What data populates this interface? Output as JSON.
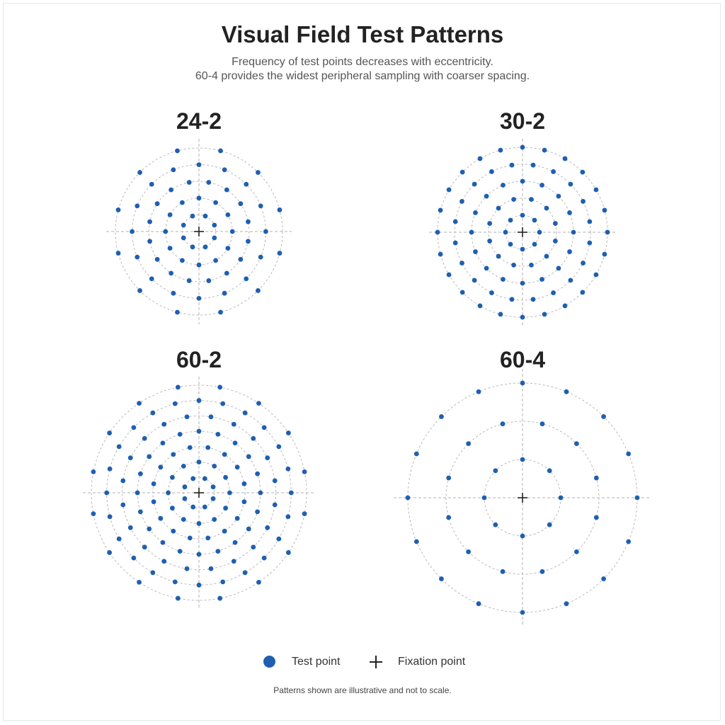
{
  "title": "Visual Field Test Patterns",
  "subtitle_lines": [
    "Frequency of test points decreases with eccentricity.",
    "60-4 provides the widest peripheral sampling with coarser spacing."
  ],
  "colors": {
    "test_point": "#1f5fb0",
    "fixation": "#222222",
    "ring": "#b8b8b8",
    "axis": "#b0b0b0"
  },
  "patterns": [
    {
      "name": "24-2",
      "rings": [
        {
          "points": 8,
          "offset_deg": 22.5
        },
        {
          "points": 12,
          "offset_deg": 0
        },
        {
          "points": 16,
          "offset_deg": 11.25
        },
        {
          "points": 16,
          "offset_deg": 0
        },
        {
          "points": 12,
          "offset_deg": 15
        }
      ]
    },
    {
      "name": "30-2",
      "rings": [
        {
          "points": 8,
          "offset_deg": 0
        },
        {
          "points": 12,
          "offset_deg": 15
        },
        {
          "points": 16,
          "offset_deg": 0
        },
        {
          "points": 20,
          "offset_deg": 9
        },
        {
          "points": 24,
          "offset_deg": 0
        }
      ]
    },
    {
      "name": "60-2",
      "rings": [
        {
          "points": 8,
          "offset_deg": 22.5
        },
        {
          "points": 12,
          "offset_deg": 0
        },
        {
          "points": 16,
          "offset_deg": 11.25
        },
        {
          "points": 20,
          "offset_deg": 0
        },
        {
          "points": 20,
          "offset_deg": 9
        },
        {
          "points": 24,
          "offset_deg": 0
        },
        {
          "points": 16,
          "offset_deg": 11.25
        }
      ]
    },
    {
      "name": "60-4",
      "rings": [
        {
          "points": 8,
          "offset_deg": 0
        },
        {
          "points": 12,
          "offset_deg": 15
        },
        {
          "points": 16,
          "offset_deg": 0
        }
      ]
    }
  ],
  "legend": {
    "test_point_label": "Test point",
    "fixation_label": "Fixation point"
  },
  "footnote": "Patterns shown are illustrative and not to scale."
}
